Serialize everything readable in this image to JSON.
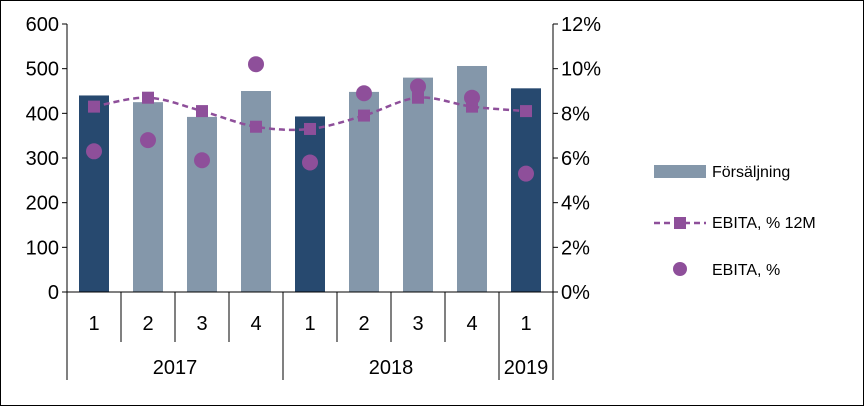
{
  "chart_data": {
    "type": "bar",
    "categories": [
      "1",
      "2",
      "3",
      "4",
      "1",
      "2",
      "3",
      "4",
      "1"
    ],
    "groups": [
      {
        "label": "2017",
        "count": 4
      },
      {
        "label": "2018",
        "count": 4
      },
      {
        "label": "2019",
        "count": 1
      }
    ],
    "series": [
      {
        "name": "Försäljning",
        "type": "bar",
        "axis": "left",
        "values": [
          440,
          425,
          392,
          450,
          393,
          448,
          480,
          506,
          456
        ],
        "colors": [
          "#27496f",
          "#8497aa",
          "#8497aa",
          "#8497aa",
          "#27496f",
          "#8497aa",
          "#8497aa",
          "#8497aa",
          "#27496f"
        ]
      },
      {
        "name": "EBITA, % 12M",
        "type": "line",
        "axis": "right",
        "values": [
          8.3,
          8.7,
          8.1,
          7.4,
          7.3,
          7.9,
          8.7,
          8.3,
          8.1
        ],
        "color": "#8e4f9a",
        "line_style": "dashed",
        "marker": "square"
      },
      {
        "name": "EBITA, %",
        "type": "scatter",
        "axis": "right",
        "values": [
          6.3,
          6.8,
          5.9,
          10.2,
          5.8,
          8.9,
          9.2,
          8.7,
          5.3
        ],
        "color": "#8e4f9a",
        "marker": "circle"
      }
    ],
    "left_axis": {
      "min": 0,
      "max": 600,
      "step": 100,
      "ticks": [
        "0",
        "100",
        "200",
        "300",
        "400",
        "500",
        "600"
      ]
    },
    "right_axis": {
      "min": 0,
      "max": 12,
      "step": 2,
      "ticks": [
        "0%",
        "2%",
        "4%",
        "6%",
        "8%",
        "10%",
        "12%"
      ]
    },
    "grid": false,
    "legend_position": "right"
  }
}
